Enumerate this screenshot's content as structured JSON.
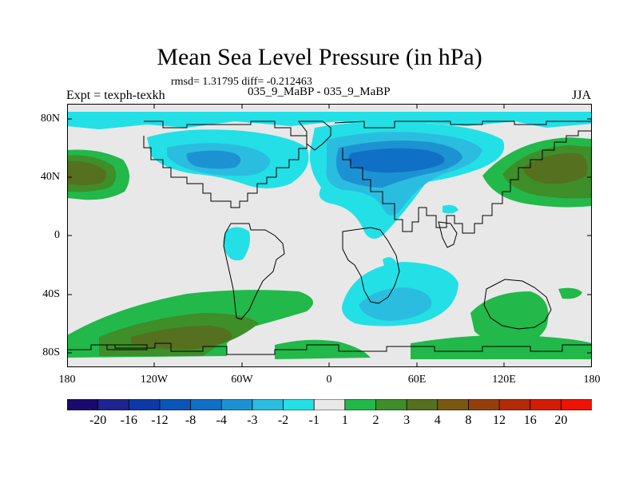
{
  "title": "Mean Sea Level Pressure (in hPa)",
  "stats": "rmsd= 1.31795 diff= -0.212463",
  "expt": "Expt = texph-texkh",
  "runs": "035_9_MaBP - 035_9_MaBP",
  "season": "JJA",
  "lat_labels": [
    "80N",
    "40N",
    "0",
    "40S",
    "80S"
  ],
  "lon_labels": [
    "180",
    "120W",
    "60W",
    "0",
    "60E",
    "120E",
    "180"
  ],
  "colorbar": {
    "labels": [
      "-20",
      "-16",
      "-12",
      "-8",
      "-4",
      "-3",
      "-2",
      "-1",
      "1",
      "2",
      "3",
      "4",
      "8",
      "12",
      "16",
      "20"
    ],
    "colors": [
      "#1a0a6e",
      "#1e2590",
      "#0b3aa6",
      "#0b55b8",
      "#1070c6",
      "#1d92d2",
      "#2bbde0",
      "#22e0e6",
      "#e8e8e8",
      "#22b84a",
      "#3e8e2a",
      "#55701e",
      "#7a5814",
      "#94400e",
      "#b22a08",
      "#d41c06",
      "#ec1404"
    ]
  },
  "colors": {
    "land_outline": "#000000",
    "neutral": "#e8e8e8",
    "cyan": "#22e0e6",
    "light_blue": "#2bbde0",
    "mid_blue": "#1d92d2",
    "blue": "#1070c6",
    "green": "#22b84a",
    "dark_green": "#3e8e2a",
    "olive": "#55701e",
    "brown": "#7a5814"
  }
}
